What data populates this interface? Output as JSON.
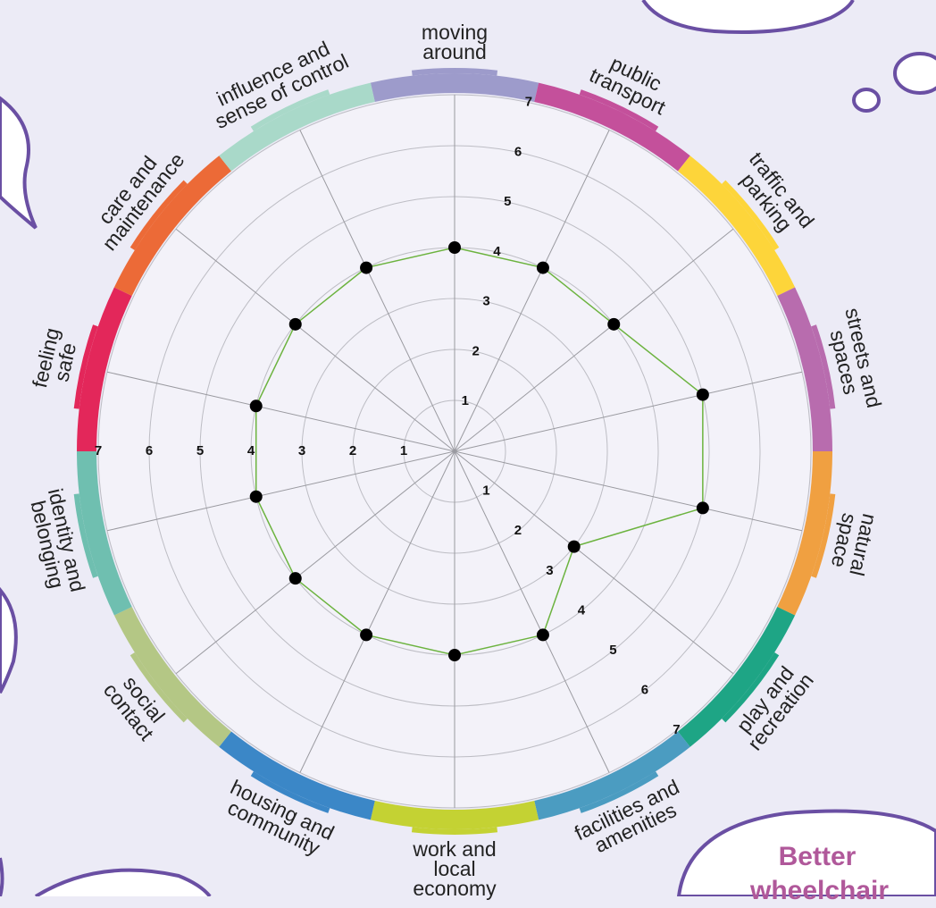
{
  "chart_data": {
    "type": "radar",
    "categories": [
      "moving around",
      "public transport",
      "traffic and parking",
      "streets and spaces",
      "natural space",
      "play and recreation",
      "facilities and amenities",
      "work and local economy",
      "housing and community",
      "social contact",
      "identity and belonging",
      "feeling safe",
      "care and maintenance",
      "influence and sense of control"
    ],
    "values": [
      4,
      4,
      4,
      5,
      5,
      3,
      4,
      4,
      4,
      4,
      4,
      4,
      4,
      4
    ],
    "color": "#6cb33f",
    "colors": [
      "#9d9bcb",
      "#c4509b",
      "#fdd53a",
      "#b86cae",
      "#f0a041",
      "#1ea585",
      "#4b9cc1",
      "#c4d233",
      "#3b87c7",
      "#b4c785",
      "#6fbfb0",
      "#e3275a",
      "#ec6a37",
      "#a9d9c9"
    ],
    "ylim": [
      0,
      7
    ],
    "yticks": [
      1,
      2,
      3,
      4,
      5,
      6,
      7
    ],
    "grid": true,
    "annotation": "Better wheelchair"
  }
}
